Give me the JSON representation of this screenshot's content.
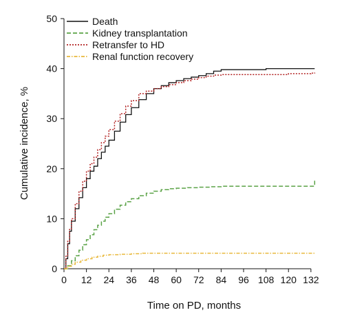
{
  "chart_data": {
    "type": "line",
    "xlabel": "Time on PD, months",
    "ylabel": "Cumulative incidence, %",
    "xlim": [
      0,
      135
    ],
    "ylim": [
      0,
      50
    ],
    "xticks": [
      0,
      12,
      24,
      36,
      48,
      60,
      72,
      84,
      96,
      108,
      120,
      132
    ],
    "yticks": [
      0,
      10,
      20,
      30,
      40,
      50
    ],
    "grid": false,
    "legend_position": "top-left",
    "series": [
      {
        "name": "Death",
        "color": "#111111",
        "dash": "solid",
        "x": [
          0,
          1,
          2,
          3,
          4,
          6,
          8,
          10,
          12,
          14,
          16,
          18,
          20,
          22,
          24,
          27,
          30,
          33,
          36,
          40,
          44,
          48,
          52,
          56,
          60,
          64,
          68,
          72,
          76,
          80,
          84,
          90,
          96,
          102,
          108,
          114,
          120,
          126,
          132,
          134
        ],
        "values": [
          0,
          2,
          5,
          7.5,
          9.5,
          12,
          14.2,
          16.2,
          18,
          19.5,
          20.5,
          22,
          23.3,
          24.5,
          25.7,
          27.5,
          29.3,
          30.8,
          32.2,
          33.8,
          35,
          36,
          36.6,
          37.2,
          37.6,
          38,
          38.3,
          38.6,
          39,
          39.5,
          39.8,
          39.8,
          39.8,
          39.8,
          40,
          40,
          40,
          40,
          40,
          40
        ]
      },
      {
        "name": "Kidney transplantation",
        "color": "#5aa246",
        "dash": "long-dash",
        "x": [
          0,
          2,
          4,
          6,
          8,
          10,
          12,
          14,
          16,
          18,
          20,
          22,
          24,
          27,
          30,
          33,
          36,
          40,
          44,
          48,
          52,
          56,
          60,
          66,
          72,
          78,
          84,
          96,
          108,
          120,
          132,
          134,
          134
        ],
        "values": [
          0,
          0.6,
          1.6,
          2.6,
          3.7,
          4.8,
          5.8,
          6.8,
          7.8,
          8.7,
          9.5,
          10.3,
          11,
          11.9,
          12.7,
          13.4,
          14,
          14.6,
          15.1,
          15.5,
          15.8,
          16,
          16.1,
          16.2,
          16.3,
          16.4,
          16.5,
          16.5,
          16.5,
          16.5,
          16.5,
          16.5,
          17.6
        ]
      },
      {
        "name": "Retransfer to HD",
        "color": "#b22222",
        "dash": "dotted",
        "x": [
          0,
          1,
          2,
          3,
          4,
          6,
          8,
          10,
          12,
          14,
          16,
          18,
          20,
          22,
          24,
          27,
          30,
          33,
          36,
          40,
          44,
          48,
          52,
          56,
          60,
          64,
          68,
          72,
          76,
          80,
          84,
          96,
          108,
          120,
          132,
          134
        ],
        "values": [
          0,
          2.5,
          5.5,
          8,
          10,
          13,
          15.5,
          17.5,
          19.5,
          21,
          22.3,
          23.8,
          25.2,
          26.5,
          27.8,
          29.5,
          31,
          32.5,
          33.6,
          35,
          35.5,
          36,
          36.4,
          36.8,
          37.2,
          37.6,
          37.9,
          38.2,
          38.5,
          38.7,
          38.8,
          38.8,
          38.8,
          39,
          39.1,
          39.2
        ]
      },
      {
        "name": "Renal function recovery",
        "color": "#e8b83a",
        "dash": "dash-dot",
        "x": [
          0,
          2,
          4,
          6,
          9,
          12,
          15,
          18,
          21,
          24,
          30,
          36,
          42,
          48,
          60,
          72,
          84,
          96,
          108,
          120,
          132,
          134
        ],
        "values": [
          0,
          0.5,
          0.9,
          1.3,
          1.7,
          2,
          2.3,
          2.5,
          2.7,
          2.8,
          2.9,
          3,
          3.1,
          3.1,
          3.1,
          3.1,
          3.1,
          3.1,
          3.1,
          3.1,
          3.1,
          3.1
        ]
      }
    ]
  }
}
